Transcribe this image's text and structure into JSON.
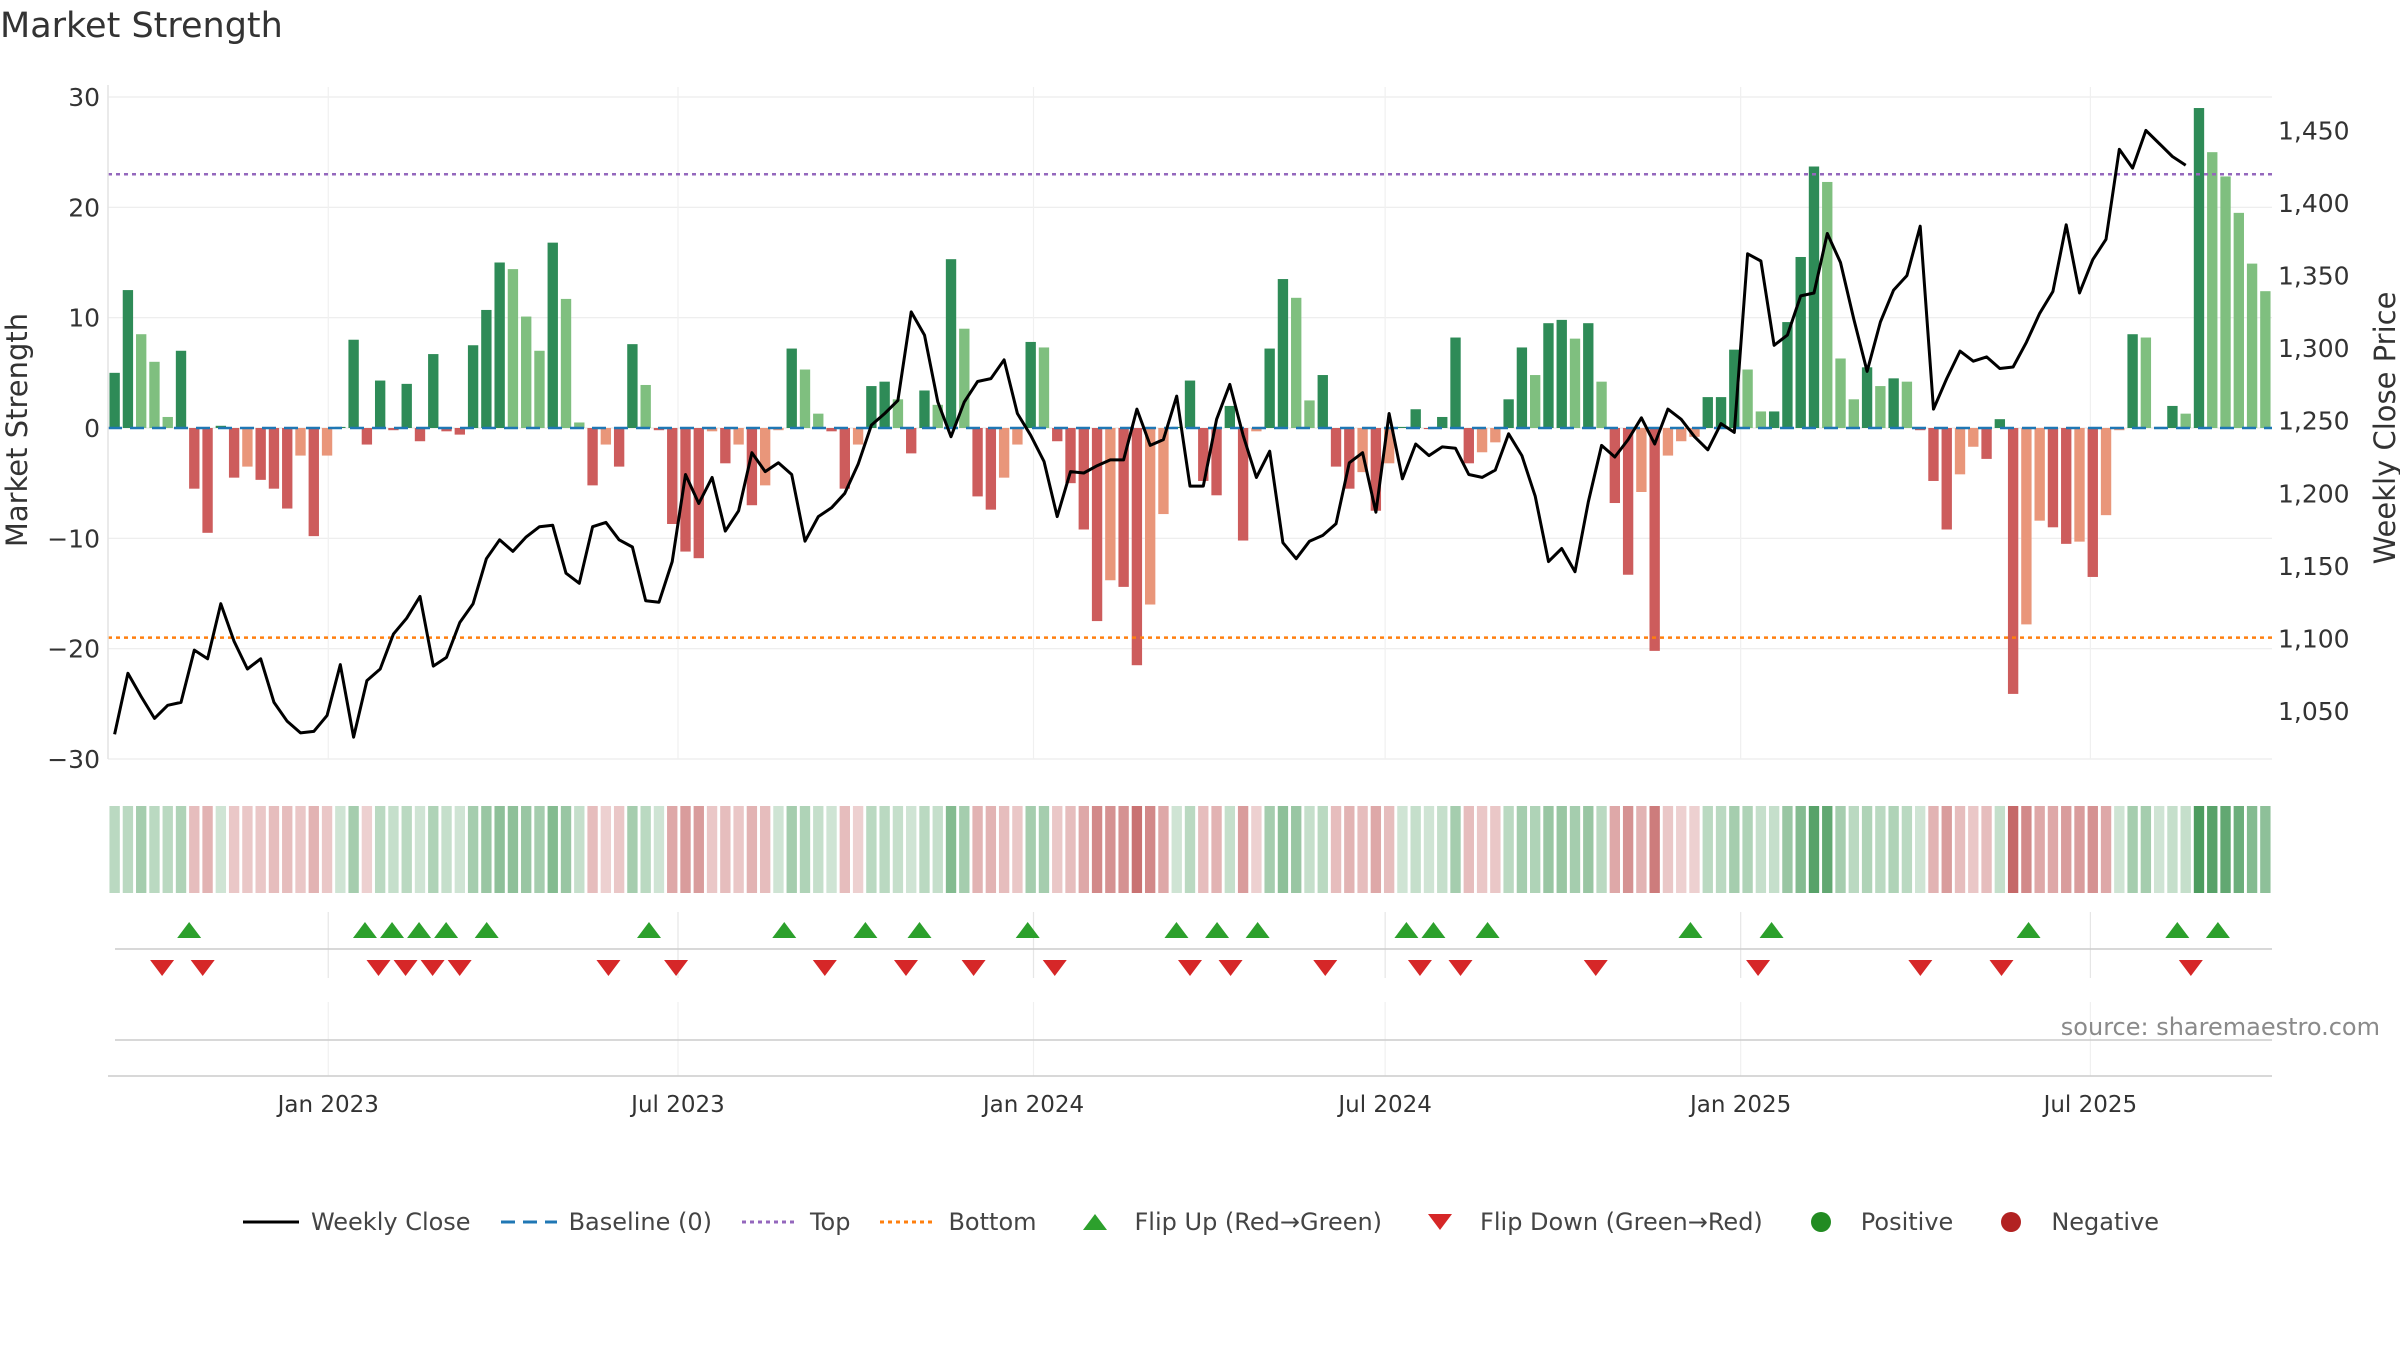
{
  "title": "Market Strength",
  "source": "source: sharemaestro.com",
  "chart_data": {
    "type": "bar",
    "title": "Market Strength",
    "ylabel_left": "Market Strength",
    "ylabel_right": "Weekly Close Price",
    "ylim_left": [
      -30,
      30
    ],
    "yticks_left": [
      30,
      20,
      10,
      0,
      -10,
      -20,
      -30
    ],
    "ytick_labels_left": [
      "30",
      "20",
      "10",
      "0",
      "−10",
      "−20",
      "−30"
    ],
    "ylim_right": [
      1017,
      1473
    ],
    "yticks_right": [
      1050,
      1100,
      1150,
      1200,
      1250,
      1300,
      1350,
      1400,
      1450
    ],
    "ytick_labels_right": [
      "1,050",
      "1,100",
      "1,150",
      "1,200",
      "1,250",
      "1,300",
      "1,350",
      "1,400",
      "1,450"
    ],
    "x_start": "2022-09-09",
    "x_end": "2025-10-03",
    "x_ticks": [
      "2023-01-01",
      "2023-07-01",
      "2024-01-01",
      "2024-07-01",
      "2025-01-01",
      "2025-07-01"
    ],
    "x_tick_labels": [
      "Jan 2023",
      "Jul 2023",
      "Jan 2024",
      "Jul 2024",
      "Jan 2025",
      "Jul 2025"
    ],
    "top_level": 23,
    "bottom_level": -19,
    "grid": true,
    "legend_position": "bottom-center",
    "colors": {
      "positive_strong": "#2e8b57",
      "positive_weak": "#7fbf7f",
      "negative_strong": "#cd5c5c",
      "negative_weak": "#e9967a",
      "weekly_close": "#000000",
      "baseline": "#1f77b4",
      "top": "#9467bd",
      "bottom": "#ff7f0e",
      "flip_up": "#2ca02c",
      "flip_down": "#d62728",
      "positive_dot": "#228b22",
      "negative_dot": "#b22222"
    },
    "strength": [
      5,
      12.5,
      8.5,
      6,
      1,
      7,
      -5.5,
      -9.5,
      0.2,
      -4.5,
      -3.5,
      -4.7,
      -5.5,
      -7.3,
      -2.5,
      -9.8,
      -2.5,
      0.1,
      8,
      -1.5,
      4.3,
      -0.2,
      4,
      -1.2,
      6.7,
      -0.3,
      -0.6,
      7.5,
      10.7,
      15,
      14.4,
      10.1,
      7,
      16.8,
      11.7,
      0.5,
      -5.2,
      -1.5,
      -3.5,
      7.6,
      3.9,
      -0.2,
      -8.7,
      -11.2,
      -11.8,
      -0.3,
      -3.2,
      -1.5,
      -7,
      -5.2,
      -0.2,
      7.2,
      5.3,
      1.3,
      -0.3,
      -5.5,
      -1.5,
      3.8,
      4.2,
      2.6,
      -2.3,
      3.4,
      2.1,
      15.3,
      9,
      -6.2,
      -7.4,
      -4.5,
      -1.5,
      7.8,
      7.3,
      -1.2,
      -5,
      -9.2,
      -17.5,
      -13.8,
      -14.4,
      -21.5,
      -16,
      -7.8,
      0.1,
      4.3,
      -4.8,
      -6.1,
      2,
      -10.2,
      -0.3,
      7.2,
      13.5,
      11.8,
      2.5,
      4.8,
      -3.5,
      -5.5,
      -4,
      -7.5,
      -3.2,
      0.1,
      1.7,
      -0.1,
      1,
      8.2,
      -3.2,
      -2.2,
      -1.3,
      2.6,
      7.3,
      4.8,
      9.5,
      9.8,
      8.1,
      9.5,
      4.2,
      -6.8,
      -13.3,
      -5.8,
      -20.2,
      -2.5,
      -1.2,
      -0.8,
      2.8,
      2.8,
      7.1,
      5.3,
      1.5,
      1.5,
      9.6,
      15.5,
      23.7,
      22.3,
      6.3,
      2.6,
      5.5,
      3.8,
      4.5,
      4.2,
      -0.2,
      -4.8,
      -9.2,
      -4.2,
      -1.7,
      -2.8,
      0.8,
      -24.1,
      -17.8,
      -8.4,
      -9,
      -10.5,
      -10.3,
      -13.5,
      -7.9,
      -0.2,
      8.5,
      8.2,
      0.1,
      2,
      1.3,
      29,
      25,
      22.8,
      19.5,
      14.9,
      12.4
    ],
    "weekly_close": [
      1034,
      1076,
      1060,
      1045,
      1054,
      1056,
      1092,
      1086,
      1124,
      1098,
      1079,
      1086,
      1056,
      1043,
      1035,
      1036,
      1047,
      1082,
      1032,
      1071,
      1079,
      1103,
      1114,
      1129,
      1081,
      1087,
      1111,
      1124,
      1155,
      1168,
      1160,
      1170,
      1177,
      1178,
      1145,
      1138,
      1177,
      1180,
      1168,
      1163,
      1126,
      1125,
      1153,
      1213,
      1193,
      1211,
      1174,
      1188,
      1228,
      1215,
      1221,
      1213,
      1167,
      1184,
      1190,
      1200,
      1220,
      1247,
      1255,
      1264,
      1325,
      1309,
      1263,
      1239,
      1263,
      1277,
      1279,
      1292,
      1255,
      1240,
      1222,
      1184,
      1215,
      1214,
      1219,
      1223,
      1223,
      1258,
      1233,
      1237,
      1267,
      1205,
      1205,
      1251,
      1275,
      1240,
      1211,
      1229,
      1166,
      1155,
      1167,
      1171,
      1179,
      1221,
      1228,
      1187,
      1255,
      1210,
      1234,
      1226,
      1232,
      1231,
      1213,
      1211,
      1216,
      1241,
      1226,
      1198,
      1153,
      1162,
      1146,
      1194,
      1233,
      1225,
      1237,
      1252,
      1234,
      1258,
      1251,
      1239,
      1230,
      1248,
      1242,
      1365,
      1360,
      1302,
      1309,
      1336,
      1338,
      1379,
      1359,
      1320,
      1284,
      1318,
      1340,
      1350,
      1384,
      1258,
      1279,
      1298,
      1291,
      1294,
      1286,
      1287,
      1304,
      1324,
      1339,
      1385,
      1338,
      1361,
      1375,
      1437,
      1424,
      1450,
      1441,
      1432,
      1426
    ],
    "strip_values": [
      0.2,
      0.2,
      0.3,
      0.2,
      0.2,
      0.25,
      -0.2,
      -0.25,
      0.1,
      -0.15,
      -0.15,
      -0.15,
      -0.2,
      -0.2,
      -0.15,
      -0.25,
      -0.15,
      0.1,
      0.3,
      -0.1,
      0.2,
      0.15,
      0.2,
      0.1,
      0.25,
      0.15,
      0.1,
      0.3,
      0.35,
      0.4,
      0.4,
      0.35,
      0.3,
      0.45,
      0.35,
      0.15,
      -0.2,
      -0.1,
      -0.15,
      0.3,
      0.2,
      0.1,
      -0.3,
      -0.35,
      -0.35,
      -0.15,
      -0.2,
      -0.15,
      -0.25,
      -0.2,
      0.1,
      0.3,
      0.25,
      0.15,
      0.1,
      -0.2,
      -0.1,
      0.2,
      0.2,
      0.15,
      0.1,
      0.2,
      0.15,
      0.45,
      0.3,
      -0.25,
      -0.25,
      -0.2,
      -0.15,
      0.3,
      0.3,
      -0.15,
      -0.2,
      -0.3,
      -0.45,
      -0.4,
      -0.4,
      -0.55,
      -0.45,
      -0.3,
      0.1,
      0.2,
      -0.2,
      -0.25,
      0.15,
      -0.35,
      -0.1,
      0.3,
      0.4,
      0.35,
      0.15,
      0.2,
      -0.2,
      -0.25,
      -0.2,
      -0.3,
      -0.2,
      0.1,
      0.15,
      0.1,
      0.15,
      0.3,
      -0.2,
      -0.15,
      -0.15,
      0.2,
      0.3,
      0.25,
      0.35,
      0.35,
      0.3,
      0.35,
      0.2,
      -0.3,
      -0.4,
      -0.25,
      -0.5,
      -0.15,
      -0.1,
      -0.1,
      0.2,
      0.2,
      0.3,
      0.25,
      0.15,
      0.15,
      0.35,
      0.45,
      0.65,
      0.6,
      0.3,
      0.2,
      0.25,
      0.2,
      0.25,
      0.2,
      0.1,
      -0.25,
      -0.35,
      -0.2,
      -0.15,
      -0.2,
      0.15,
      -0.6,
      -0.45,
      -0.3,
      -0.3,
      -0.35,
      -0.35,
      -0.4,
      -0.3,
      0.1,
      0.3,
      0.3,
      0.1,
      0.15,
      0.15,
      0.7,
      0.65,
      0.6,
      0.55,
      0.45,
      0.4
    ],
    "flip_up_dates": [
      "2022-10-21",
      "2023-01-20",
      "2023-02-03",
      "2023-02-17",
      "2023-03-03",
      "2023-03-24",
      "2023-06-16",
      "2023-08-25",
      "2023-10-06",
      "2023-11-03",
      "2023-12-29",
      "2024-03-15",
      "2024-04-05",
      "2024-04-26",
      "2024-07-12",
      "2024-07-26",
      "2024-08-23",
      "2024-12-06",
      "2025-01-17",
      "2025-05-30",
      "2025-08-15",
      "2025-09-05"
    ],
    "flip_down_dates": [
      "2022-10-07",
      "2022-10-28",
      "2023-01-27",
      "2023-02-10",
      "2023-02-24",
      "2023-03-10",
      "2023-05-26",
      "2023-06-30",
      "2023-09-15",
      "2023-10-27",
      "2023-12-01",
      "2024-01-12",
      "2024-03-22",
      "2024-04-12",
      "2024-05-31",
      "2024-07-19",
      "2024-08-09",
      "2024-10-18",
      "2025-01-10",
      "2025-04-04",
      "2025-05-16",
      "2025-08-22"
    ],
    "legend": [
      {
        "label": "Weekly Close",
        "symbol": "line-solid",
        "color": "#000000"
      },
      {
        "label": "Baseline (0)",
        "symbol": "line-dashed",
        "color": "#1f77b4"
      },
      {
        "label": "Top",
        "symbol": "line-dotted",
        "color": "#9467bd"
      },
      {
        "label": "Bottom",
        "symbol": "line-dotted",
        "color": "#ff7f0e"
      },
      {
        "label": "Flip Up (Red→Green)",
        "symbol": "triangle-up",
        "color": "#2ca02c"
      },
      {
        "label": "Flip Down (Green→Red)",
        "symbol": "triangle-down",
        "color": "#d62728"
      },
      {
        "label": "Positive",
        "symbol": "circle",
        "color": "#228b22"
      },
      {
        "label": "Negative",
        "symbol": "circle",
        "color": "#b22222"
      }
    ]
  }
}
